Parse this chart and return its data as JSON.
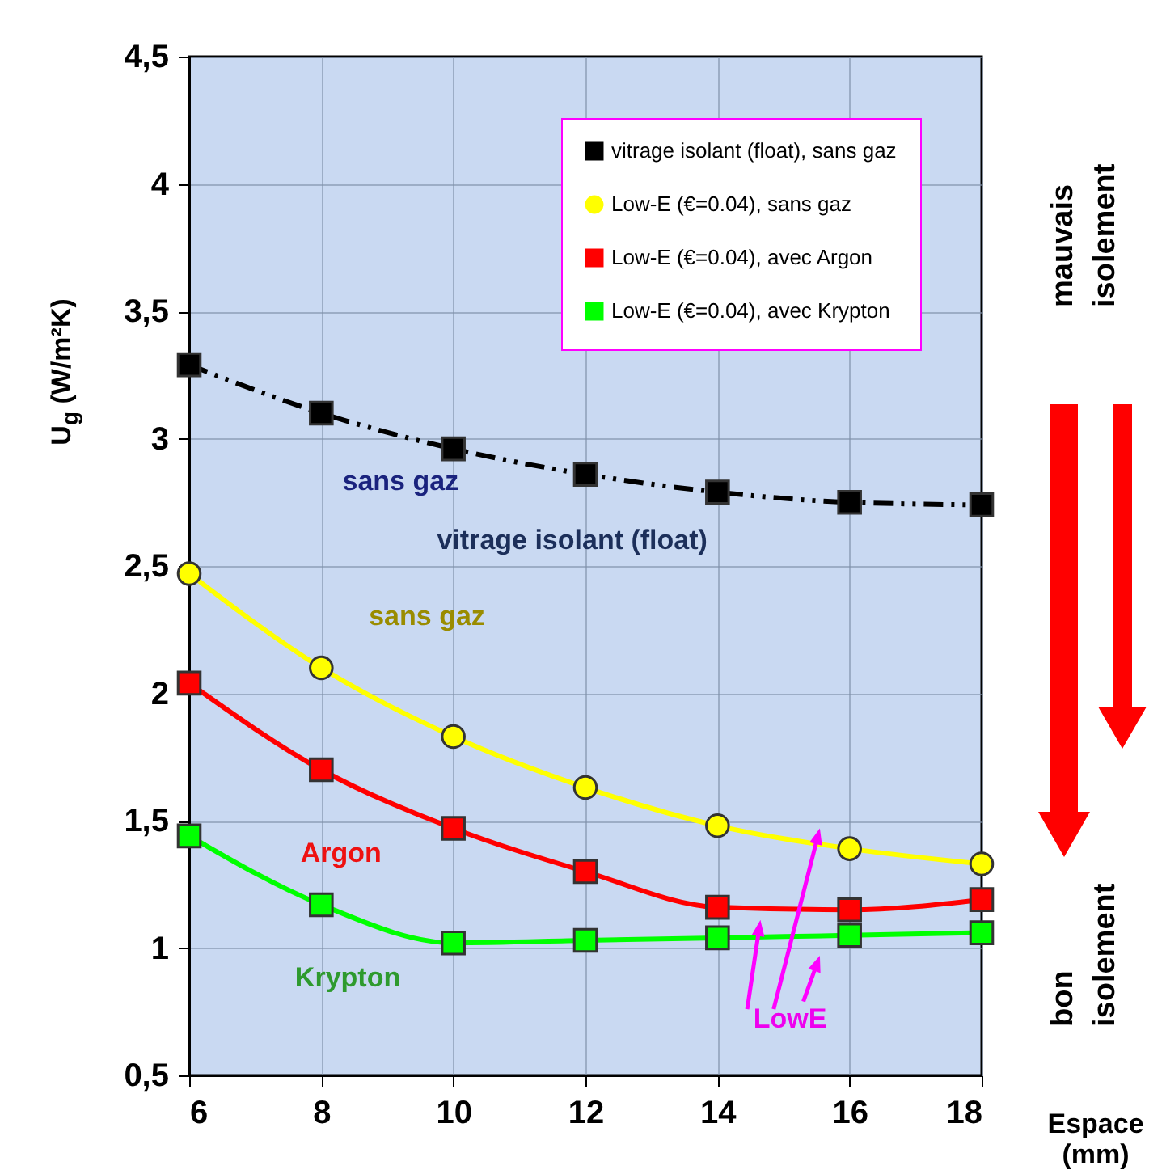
{
  "chart_data": {
    "type": "line",
    "xlabel": "Espace (mm)",
    "ylabel": "U$_{g}$ (W/m²K)",
    "x": [
      6,
      8,
      10,
      12,
      14,
      16,
      18
    ],
    "series": [
      {
        "name": "vitrage isolant (float), sans gaz",
        "color": "#000000",
        "marker": "square",
        "line_style": "dashed",
        "values": [
          3.29,
          3.1,
          2.96,
          2.86,
          2.79,
          2.75,
          2.74
        ]
      },
      {
        "name": "Low-E (€=0.04), sans gaz",
        "color": "#ffff00",
        "marker": "circle",
        "line_style": "solid",
        "values": [
          2.47,
          2.1,
          1.83,
          1.63,
          1.48,
          1.39,
          1.33
        ]
      },
      {
        "name": "Low-E (€=0.04), avec Argon",
        "color": "#ff0000",
        "marker": "square",
        "line_style": "solid",
        "values": [
          2.04,
          1.7,
          1.47,
          1.3,
          1.16,
          1.15,
          1.19
        ]
      },
      {
        "name": "Low-E (€=0.04), avec Krypton",
        "color": "#00ff00",
        "marker": "square",
        "line_style": "solid",
        "values": [
          1.44,
          1.17,
          1.02,
          1.03,
          1.04,
          1.05,
          1.06
        ]
      }
    ],
    "xlim": [
      6,
      18
    ],
    "ylim": [
      0.5,
      4.5
    ],
    "xticks": [
      6,
      8,
      10,
      12,
      14,
      16,
      18
    ],
    "yticks": [
      {
        "value": 0.5,
        "label": "0,5"
      },
      1,
      {
        "value": 1.5,
        "label": "1,5"
      },
      2,
      {
        "value": 2.5,
        "label": "2,5"
      },
      3,
      {
        "value": 3.5,
        "label": "3,5"
      },
      4,
      {
        "value": 4.5,
        "label": "4,5"
      }
    ],
    "grid": true,
    "legend": "top right",
    "annotations": [
      "sans gaz",
      "vitrage isolant (float)",
      "sans gaz",
      "Argon",
      "Krypton",
      "LowE",
      "mauvais isolement",
      "bon isolement"
    ]
  }
}
